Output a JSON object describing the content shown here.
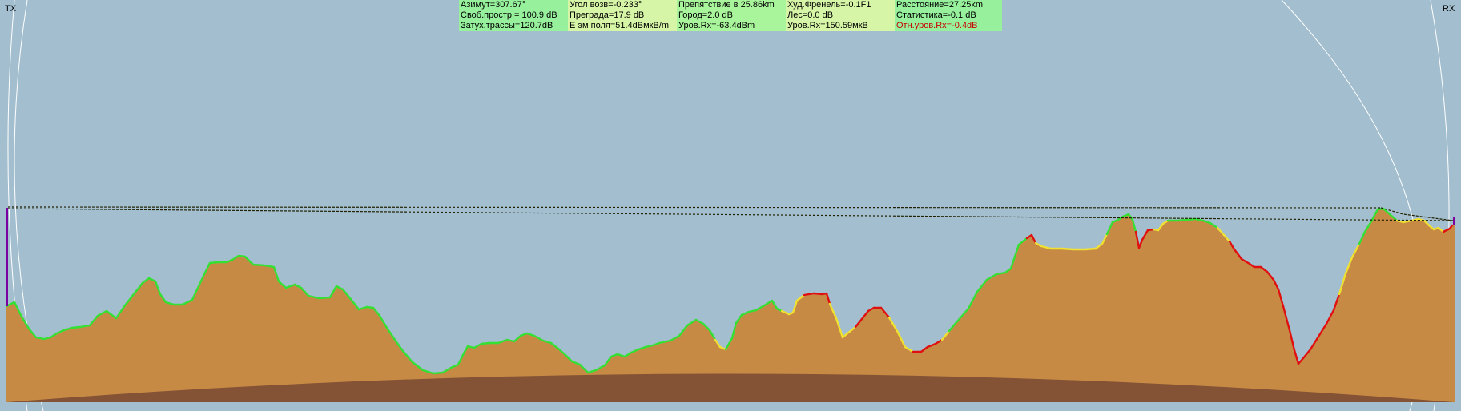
{
  "labels": {
    "tx": "TX",
    "rx": "RX"
  },
  "info": {
    "rows": [
      [
        "Азимут=307.67°",
        "Угол возв=-0.233°",
        "Препятствие в 25.86km",
        "Худ.Френель=-0.1F1",
        "Расстояние=27.25km"
      ],
      [
        "Своб.простр.= 100.9 dB",
        "Преграда=17.9 dB",
        "Город=2.0 dB",
        "Лес=0.0 dB",
        "Статистика=-0.1 dB"
      ],
      [
        "Затух.трассы=120.7dB",
        "Е эм поля=51.4dBмкВ/m",
        "Уров.Rx=-63.4dBm",
        "Уров.Rx=150.59мкВ",
        "Отн.уров.Rx=-0.4dB"
      ]
    ]
  },
  "colors": {
    "sky": "#a3bfcf",
    "terrain": "#c78a45",
    "earth_bulge": "#845335",
    "clear": "#33e033",
    "marginal": "#f0e030",
    "blocked": "#e01010",
    "beam": "#202000",
    "fresnel": "#ffffff",
    "antenna": "#7a00a0"
  }
}
